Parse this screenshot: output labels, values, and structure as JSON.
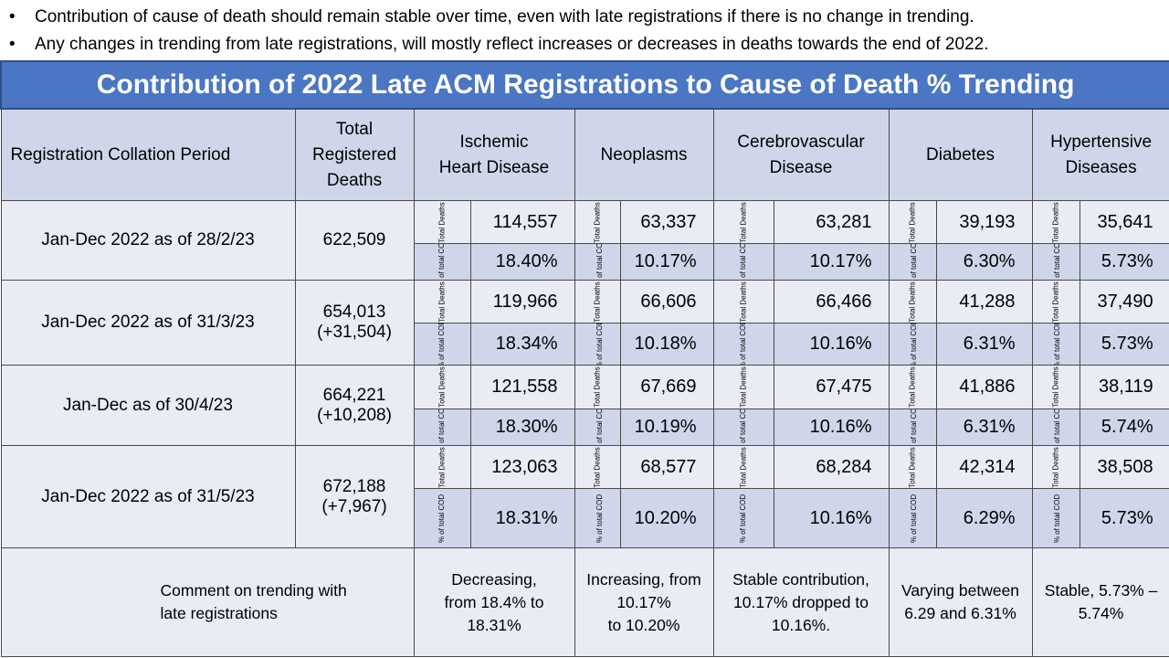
{
  "bullets": [
    "Contribution of cause of death should remain stable over time, even with late registrations if there is no change in trending.",
    "Any changes in trending from late registrations, will mostly reflect increases or decreases in deaths towards the end of 2022."
  ],
  "table": {
    "title": "Contribution of 2022 Late ACM Registrations to Cause of Death % Trending",
    "headers": {
      "period": "Registration Collation Period",
      "total": "Total\nRegistered\nDeaths",
      "causes": [
        "Ischemic\nHeart Disease",
        "Neoplasms",
        "Cerebrovascular\nDisease",
        "Diabetes",
        "Hypertensive\nDiseases"
      ]
    },
    "row_labels": {
      "total_deaths": "Total\nDeaths",
      "pct_cod": "% of\ntotal\nCOD"
    },
    "rows": [
      {
        "period": "Jan-Dec 2022 as of 28/2/23",
        "total": "622,509",
        "deaths": [
          "114,557",
          "63,337",
          "63,281",
          "39,193",
          "35,641"
        ],
        "pct": [
          "18.40%",
          "10.17%",
          "10.17%",
          "6.30%",
          "5.73%"
        ]
      },
      {
        "period": "Jan-Dec 2022 as of 31/3/23",
        "total": "654,013\n(+31,504)",
        "deaths": [
          "119,966",
          "66,606",
          "66,466",
          "41,288",
          "37,490"
        ],
        "pct": [
          "18.34%",
          "10.18%",
          "10.16%",
          "6.31%",
          "5.73%"
        ]
      },
      {
        "period": "Jan-Dec as of 30/4/23",
        "total": "664,221\n(+10,208)",
        "deaths": [
          "121,558",
          "67,669",
          "67,475",
          "41,886",
          "38,119"
        ],
        "pct": [
          "18.30%",
          "10.19%",
          "10.16%",
          "6.31%",
          "5.74%"
        ]
      },
      {
        "period": "Jan-Dec 2022 as of 31/5/23",
        "total": "672,188\n(+7,967)",
        "deaths": [
          "123,063",
          "68,577",
          "68,284",
          "42,314",
          "38,508"
        ],
        "pct": [
          "18.31%",
          "10.20%",
          "10.16%",
          "6.29%",
          "5.73%"
        ]
      }
    ],
    "comment": {
      "label": "Comment on trending with\nlate registrations",
      "values": [
        "Decreasing,\nfrom 18.4% to\n18.31%",
        "Increasing, from\n10.17%\nto 10.20%",
        "Stable contribution,\n10.17% dropped to\n10.16%.",
        "Varying between\n6.29 and 6.31%",
        "Stable, 5.73% –\n5.74%"
      ]
    }
  }
}
